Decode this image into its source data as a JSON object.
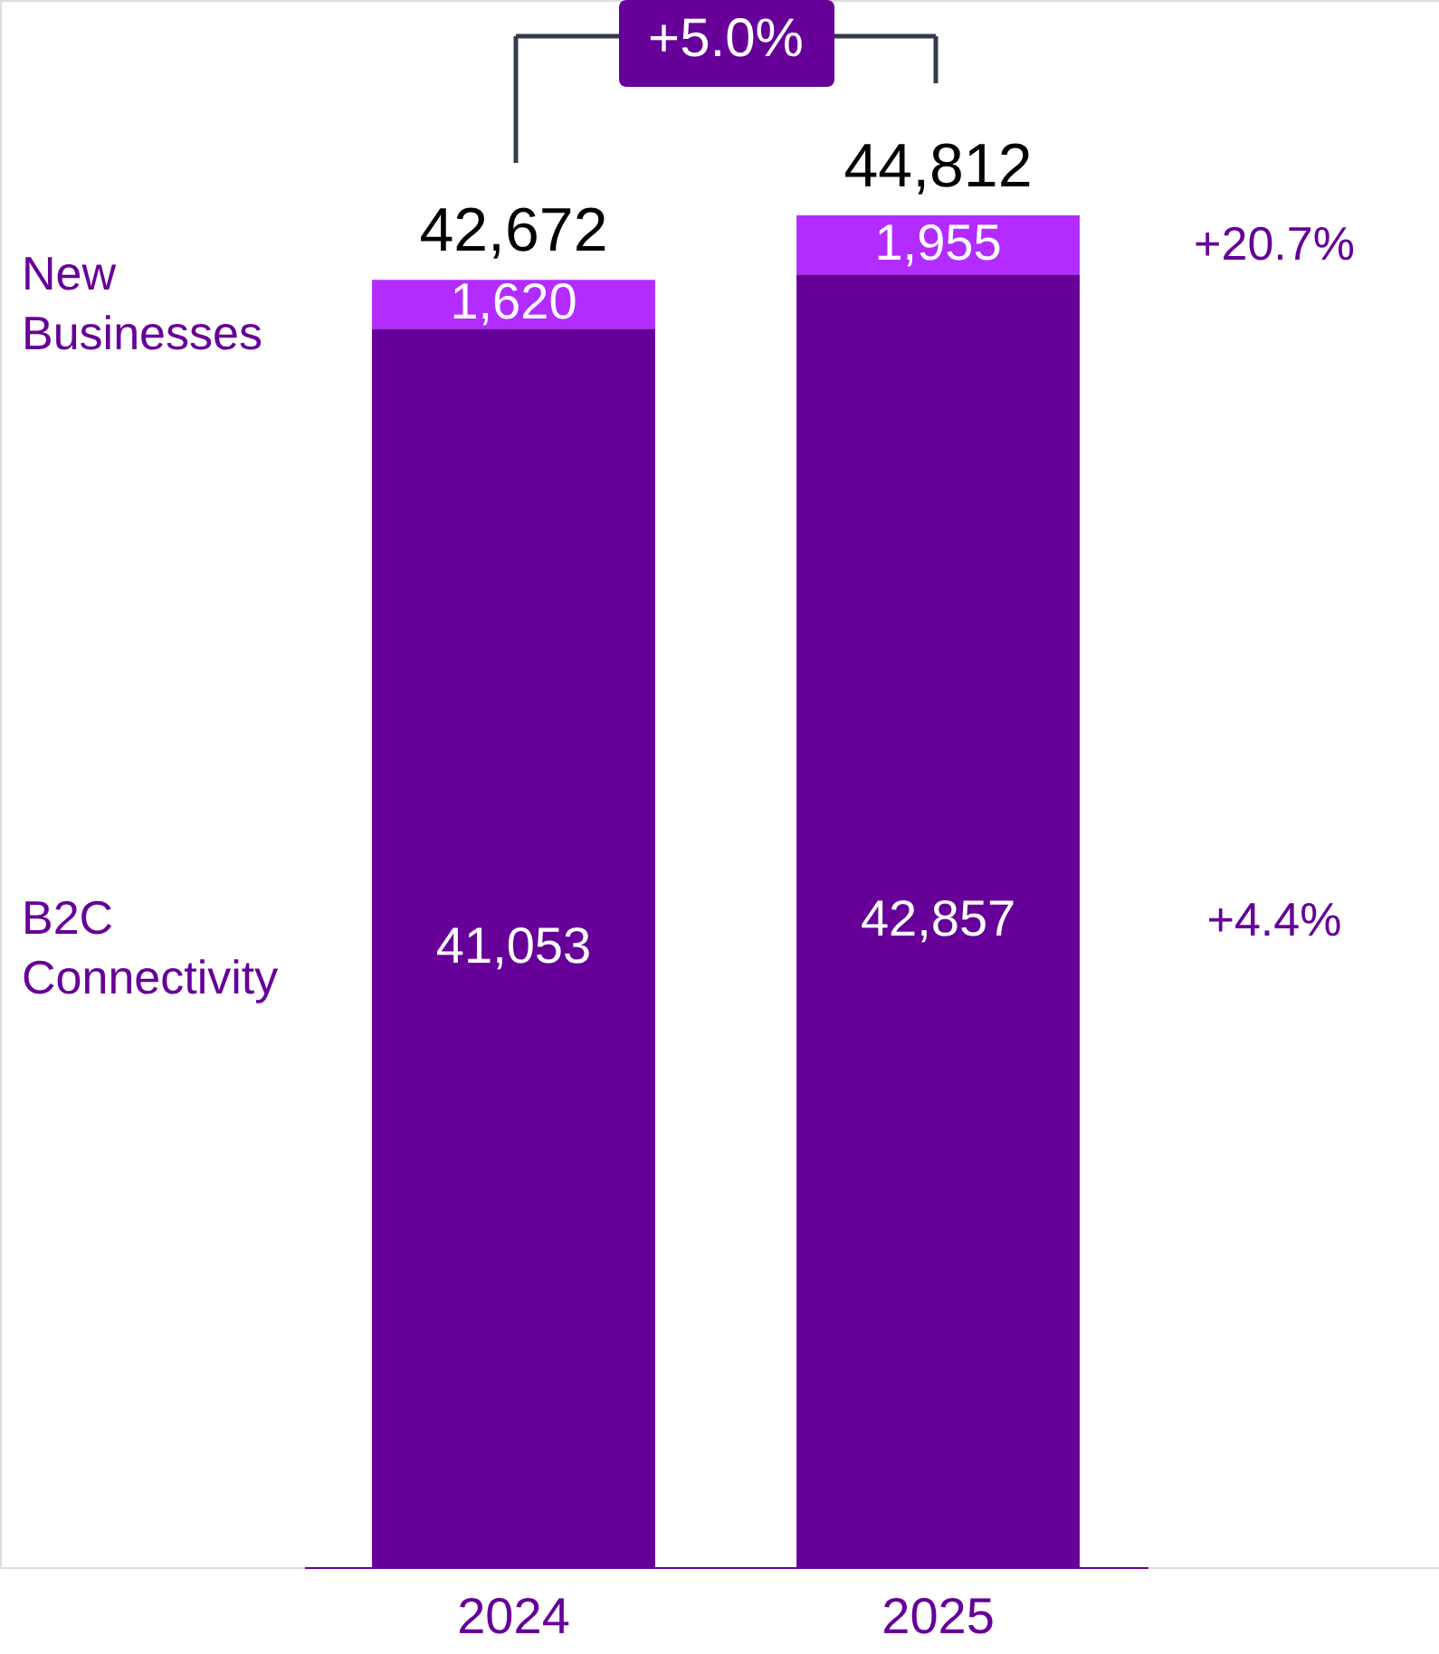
{
  "chart_data": {
    "type": "bar",
    "stacked": true,
    "categories": [
      "2024",
      "2025"
    ],
    "series": [
      {
        "name": "B2C Connectivity",
        "color": "#660099",
        "values": [
          41053,
          42857
        ],
        "value_labels": [
          "41,053",
          "42,857"
        ]
      },
      {
        "name": "New Businesses",
        "color": "#b32cff",
        "values": [
          1620,
          1955
        ],
        "value_labels": [
          "1,620",
          "1,955"
        ]
      }
    ],
    "totals": [
      "42,672",
      "44,812"
    ],
    "legend": false,
    "grid": false,
    "tick_labels": "x",
    "annotations": [
      "+5.0%",
      "+20.7%",
      "+4.4%"
    ]
  }
}
